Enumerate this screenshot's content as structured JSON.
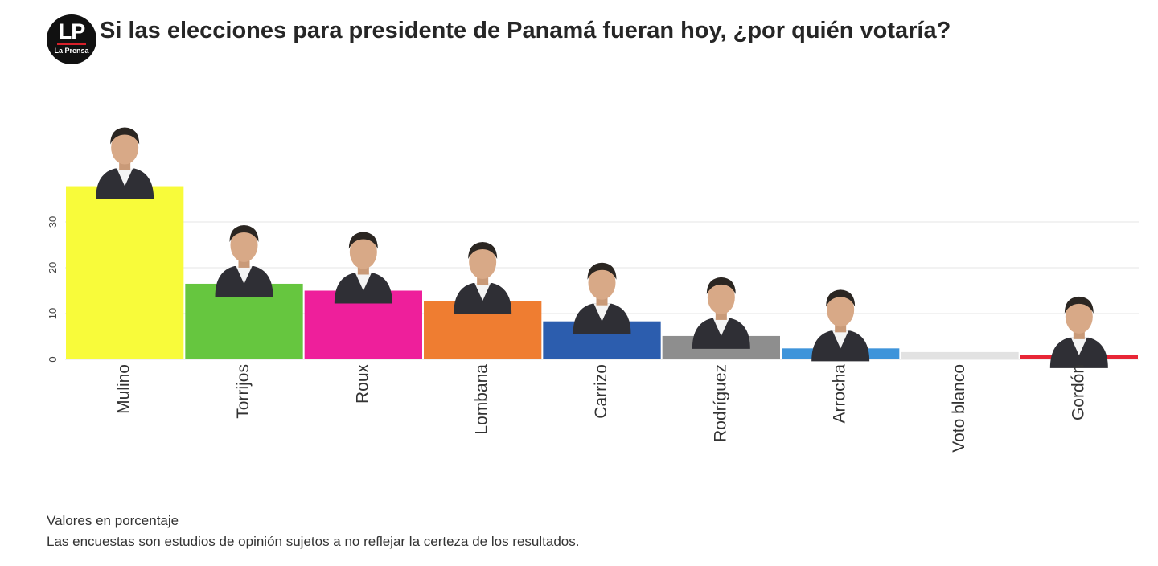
{
  "brand": {
    "initials": "LP",
    "name": "La Prensa"
  },
  "title": "Si las elecciones para presidente de Panamá fueran hoy, ¿por quién votaría?",
  "notes": {
    "units": "Valores en porcentaje",
    "disclaimer": "Las encuestas son estudios de opinión sujetos a no reflejar la certeza de los resultados."
  },
  "chart_data": {
    "type": "bar",
    "categories": [
      "Mulino",
      "Torrijos",
      "Roux",
      "Lombana",
      "Carrizo",
      "Rodríguez",
      "Arrocha",
      "Voto blanco",
      "Gordón"
    ],
    "values": [
      37.8,
      16.5,
      15.0,
      12.8,
      8.3,
      5.1,
      2.4,
      1.6,
      0.9
    ],
    "colors": [
      "#f8fb3a",
      "#66c63f",
      "#ee1f9b",
      "#ef7d31",
      "#2c5dae",
      "#8e8e8e",
      "#3e94da",
      "#e2e2e2",
      "#e82636"
    ],
    "ylim": [
      0,
      40
    ],
    "yticks": [
      0,
      10,
      20,
      30
    ],
    "grid": true,
    "legend": "none",
    "candidate_photos": true
  }
}
